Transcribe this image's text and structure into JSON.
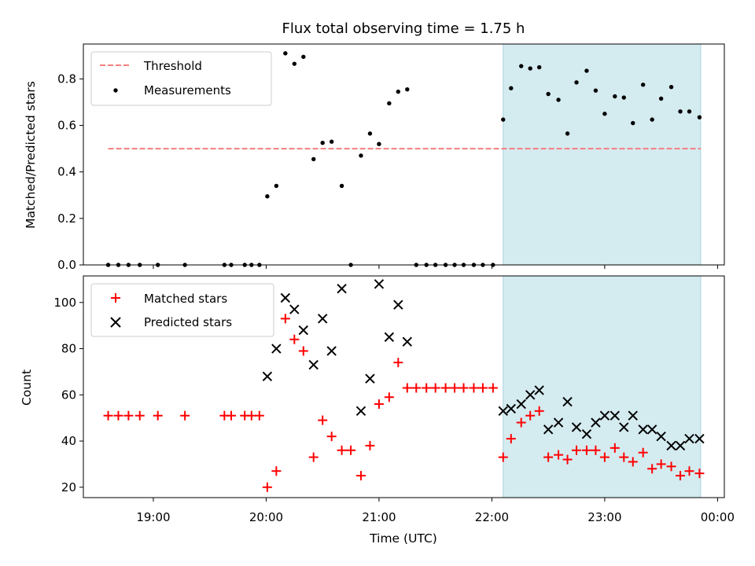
{
  "chart_data": {
    "type": "scatter",
    "title": "Flux total observing time = 1.75 h",
    "xlabel": "Time (UTC)",
    "x_ticks": [
      "19:00",
      "20:00",
      "21:00",
      "22:00",
      "23:00",
      "00:00"
    ],
    "x_tick_hours": [
      19,
      20,
      21,
      22,
      23,
      24
    ],
    "xlim": [
      18.38,
      24.06
    ],
    "shaded_region": {
      "x": [
        22.1,
        23.85
      ],
      "color": "#d4ebf0"
    },
    "panels": [
      {
        "ylabel": "Matched/Predicted stars",
        "ylim": [
          0,
          0.95
        ],
        "yticks": [
          0.0,
          0.2,
          0.4,
          0.6,
          0.8
        ],
        "ytick_labels": [
          "0.0",
          "0.2",
          "0.4",
          "0.6",
          "0.8"
        ],
        "legend_position": "upper-left",
        "threshold": {
          "name": "Threshold",
          "value": 0.5,
          "x": [
            18.6,
            23.85
          ],
          "color": "#f47f7f"
        },
        "series": [
          {
            "name": "Measurements",
            "marker": "dot",
            "color": "#000000",
            "points": [
              [
                18.6,
                0.0
              ],
              [
                18.69,
                0.0
              ],
              [
                18.78,
                0.0
              ],
              [
                18.88,
                0.0
              ],
              [
                19.04,
                0.0
              ],
              [
                19.28,
                0.0
              ],
              [
                19.63,
                0.0
              ],
              [
                19.69,
                0.0
              ],
              [
                19.81,
                0.0
              ],
              [
                19.87,
                0.0
              ],
              [
                19.94,
                0.0
              ],
              [
                20.01,
                0.295
              ],
              [
                20.09,
                0.34
              ],
              [
                20.17,
                0.91
              ],
              [
                20.25,
                0.865
              ],
              [
                20.33,
                0.895
              ],
              [
                20.42,
                0.455
              ],
              [
                20.5,
                0.525
              ],
              [
                20.58,
                0.53
              ],
              [
                20.67,
                0.34
              ],
              [
                20.75,
                0.0
              ],
              [
                20.84,
                0.47
              ],
              [
                20.92,
                0.565
              ],
              [
                21.0,
                0.52
              ],
              [
                21.09,
                0.695
              ],
              [
                21.17,
                0.745
              ],
              [
                21.25,
                0.755
              ],
              [
                21.33,
                0.0
              ],
              [
                21.42,
                0.0
              ],
              [
                21.5,
                0.0
              ],
              [
                21.59,
                0.0
              ],
              [
                21.67,
                0.0
              ],
              [
                21.75,
                0.0
              ],
              [
                21.84,
                0.0
              ],
              [
                21.92,
                0.0
              ],
              [
                22.01,
                0.0
              ],
              [
                22.1,
                0.625
              ],
              [
                22.17,
                0.76
              ],
              [
                22.26,
                0.855
              ],
              [
                22.34,
                0.845
              ],
              [
                22.42,
                0.85
              ],
              [
                22.5,
                0.735
              ],
              [
                22.59,
                0.71
              ],
              [
                22.67,
                0.565
              ],
              [
                22.75,
                0.785
              ],
              [
                22.84,
                0.835
              ],
              [
                22.92,
                0.75
              ],
              [
                23.0,
                0.65
              ],
              [
                23.09,
                0.725
              ],
              [
                23.17,
                0.72
              ],
              [
                23.25,
                0.61
              ],
              [
                23.34,
                0.775
              ],
              [
                23.42,
                0.625
              ],
              [
                23.5,
                0.715
              ],
              [
                23.59,
                0.765
              ],
              [
                23.67,
                0.66
              ],
              [
                23.75,
                0.66
              ],
              [
                23.84,
                0.635
              ]
            ]
          }
        ]
      },
      {
        "ylabel": "Count",
        "ylim": [
          15.5,
          111.5
        ],
        "yticks": [
          20,
          40,
          60,
          80,
          100
        ],
        "ytick_labels": [
          "20",
          "40",
          "60",
          "80",
          "100"
        ],
        "legend_position": "upper-left",
        "series": [
          {
            "name": "Matched stars",
            "marker": "plus",
            "color": "#ff0000",
            "points": [
              [
                18.6,
                51
              ],
              [
                18.69,
                51
              ],
              [
                18.78,
                51
              ],
              [
                18.88,
                51
              ],
              [
                19.04,
                51
              ],
              [
                19.28,
                51
              ],
              [
                19.63,
                51
              ],
              [
                19.69,
                51
              ],
              [
                19.81,
                51
              ],
              [
                19.87,
                51
              ],
              [
                19.94,
                51
              ],
              [
                20.01,
                20
              ],
              [
                20.09,
                27
              ],
              [
                20.17,
                93
              ],
              [
                20.25,
                84
              ],
              [
                20.33,
                79
              ],
              [
                20.42,
                33
              ],
              [
                20.5,
                49
              ],
              [
                20.58,
                42
              ],
              [
                20.67,
                36
              ],
              [
                20.75,
                36
              ],
              [
                20.84,
                25
              ],
              [
                20.92,
                38
              ],
              [
                21.0,
                56
              ],
              [
                21.09,
                59
              ],
              [
                21.17,
                74
              ],
              [
                21.25,
                63
              ],
              [
                21.33,
                63
              ],
              [
                21.42,
                63
              ],
              [
                21.5,
                63
              ],
              [
                21.59,
                63
              ],
              [
                21.67,
                63
              ],
              [
                21.75,
                63
              ],
              [
                21.84,
                63
              ],
              [
                21.92,
                63
              ],
              [
                22.01,
                63
              ],
              [
                22.1,
                33
              ],
              [
                22.17,
                41
              ],
              [
                22.26,
                48
              ],
              [
                22.34,
                51
              ],
              [
                22.42,
                53
              ],
              [
                22.5,
                33
              ],
              [
                22.59,
                34
              ],
              [
                22.67,
                32
              ],
              [
                22.75,
                36
              ],
              [
                22.84,
                36
              ],
              [
                22.92,
                36
              ],
              [
                23.0,
                33
              ],
              [
                23.09,
                37
              ],
              [
                23.17,
                33
              ],
              [
                23.25,
                31
              ],
              [
                23.34,
                35
              ],
              [
                23.42,
                28
              ],
              [
                23.5,
                30
              ],
              [
                23.59,
                29
              ],
              [
                23.67,
                25
              ],
              [
                23.75,
                27
              ],
              [
                23.84,
                26
              ]
            ]
          },
          {
            "name": "Predicted stars",
            "marker": "x",
            "color": "#000000",
            "points": [
              [
                20.01,
                68
              ],
              [
                20.09,
                80
              ],
              [
                20.17,
                102
              ],
              [
                20.25,
                97
              ],
              [
                20.33,
                88
              ],
              [
                20.42,
                73
              ],
              [
                20.5,
                93
              ],
              [
                20.58,
                79
              ],
              [
                20.67,
                106
              ],
              [
                20.84,
                53
              ],
              [
                20.92,
                67
              ],
              [
                21.0,
                108
              ],
              [
                21.09,
                85
              ],
              [
                21.17,
                99
              ],
              [
                21.25,
                83
              ],
              [
                22.1,
                53
              ],
              [
                22.17,
                54
              ],
              [
                22.26,
                56
              ],
              [
                22.34,
                60
              ],
              [
                22.42,
                62
              ],
              [
                22.5,
                45
              ],
              [
                22.59,
                48
              ],
              [
                22.67,
                57
              ],
              [
                22.75,
                46
              ],
              [
                22.84,
                43
              ],
              [
                22.92,
                48
              ],
              [
                23.0,
                51
              ],
              [
                23.09,
                51
              ],
              [
                23.17,
                46
              ],
              [
                23.25,
                51
              ],
              [
                23.34,
                45
              ],
              [
                23.42,
                45
              ],
              [
                23.5,
                42
              ],
              [
                23.59,
                38
              ],
              [
                23.67,
                38
              ],
              [
                23.75,
                41
              ],
              [
                23.84,
                41
              ]
            ]
          }
        ]
      }
    ]
  }
}
